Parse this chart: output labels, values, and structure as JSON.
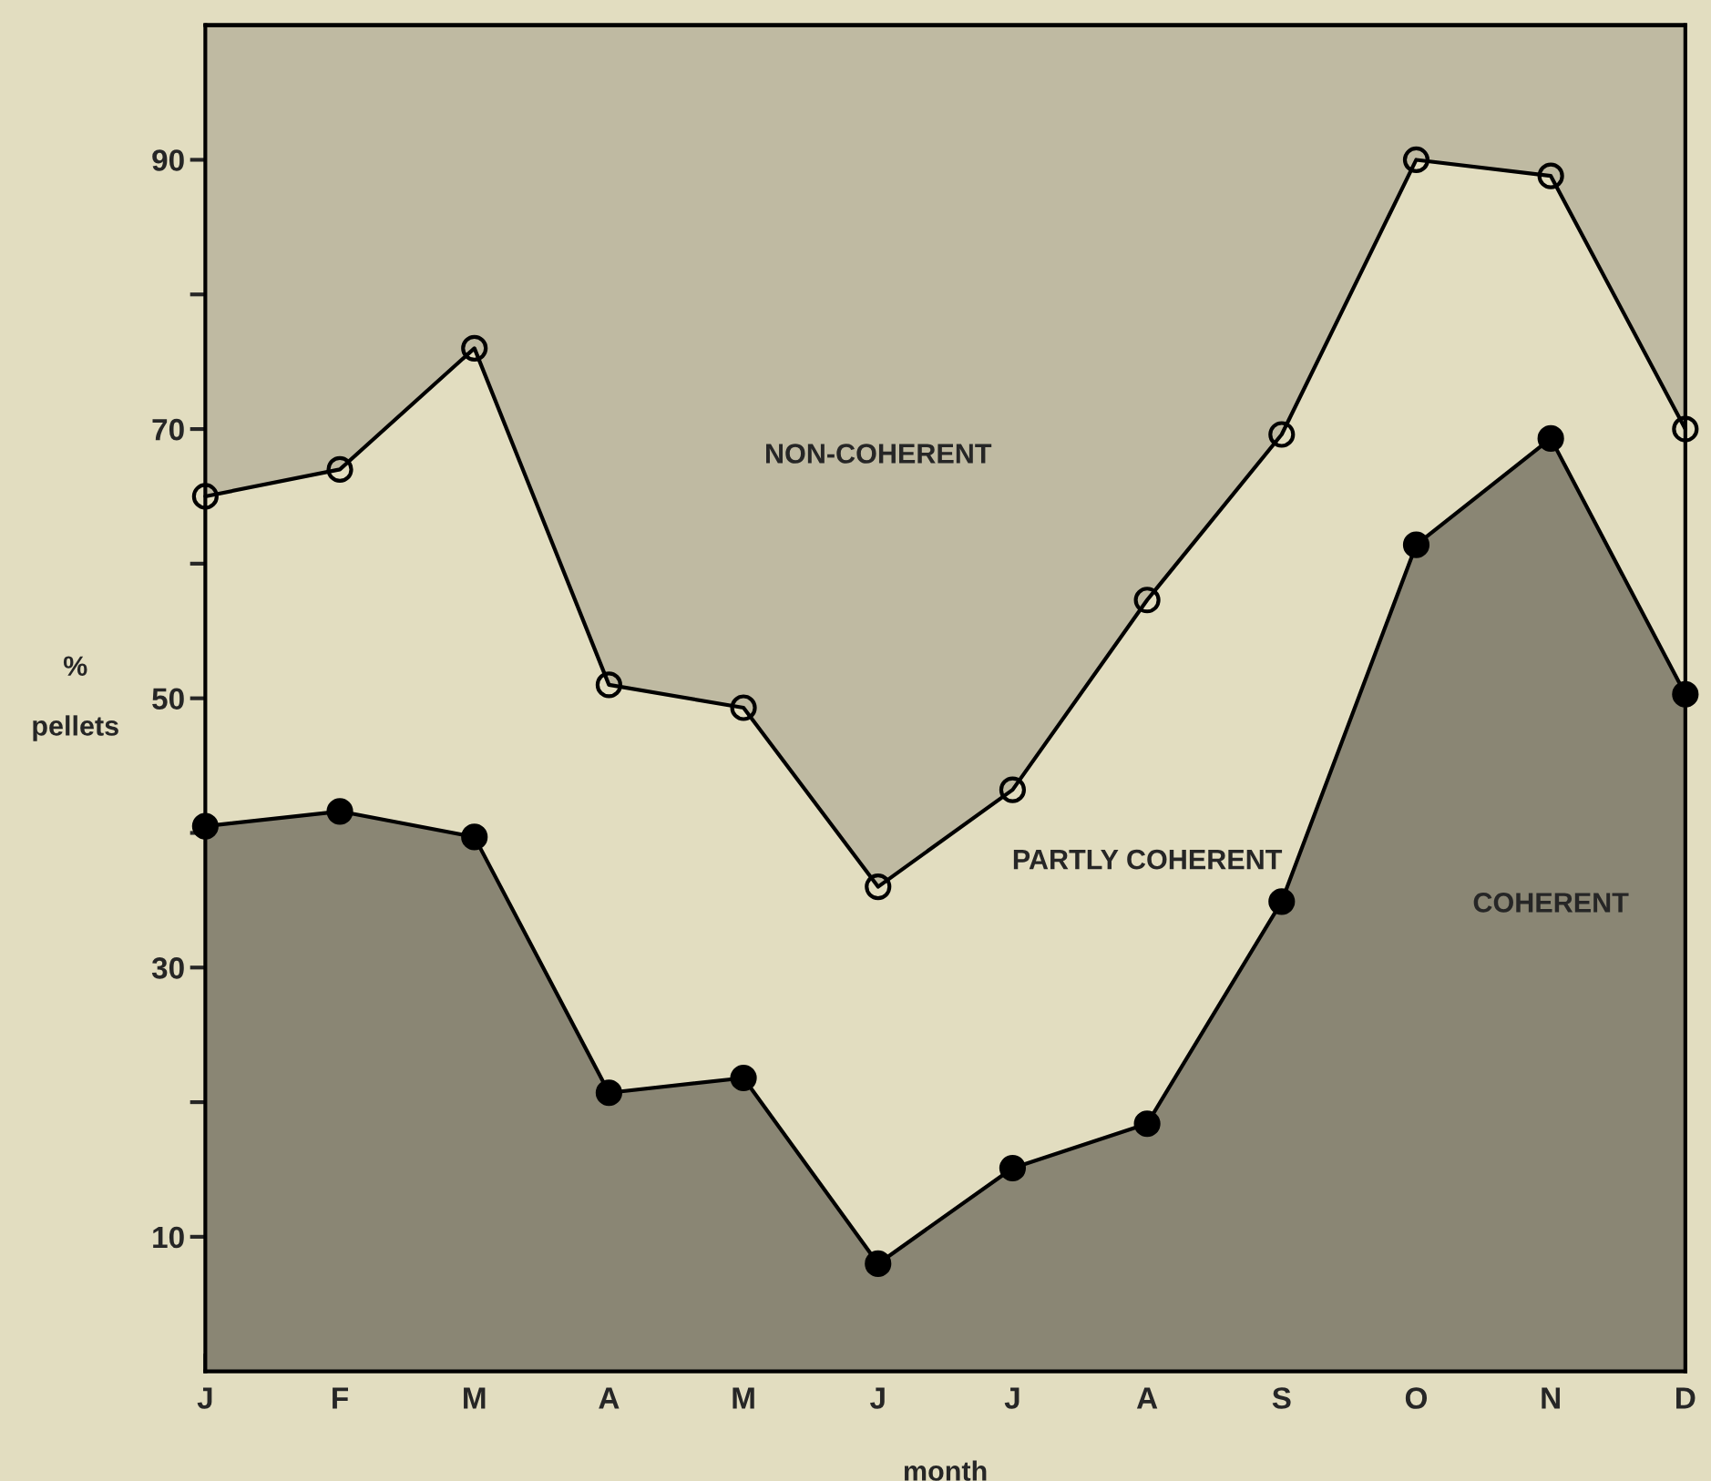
{
  "chart_data": {
    "type": "area",
    "stacked": true,
    "xlabel": "month",
    "ylabel": "%\n\npellets",
    "categories": [
      "J",
      "F",
      "M",
      "A",
      "M",
      "J",
      "J",
      "A",
      "S",
      "O",
      "N",
      "D"
    ],
    "series": [
      {
        "name": "COHERENT",
        "color": "#8a8674",
        "marker": "circle",
        "values": [
          40.5,
          41.6,
          39.7,
          20.7,
          21.8,
          8.0,
          15.1,
          18.4,
          34.9,
          61.4,
          69.3,
          50.3
        ]
      },
      {
        "name": "PARTLY COHERENT",
        "color": "#e2ddc0",
        "marker": "circle",
        "values": [
          24.5,
          25.4,
          36.3,
          30.3,
          27.5,
          28.0,
          28.1,
          38.9,
          34.7,
          28.6,
          19.5,
          19.7
        ]
      },
      {
        "name": "NON-COHERENT",
        "color": "#bfbaa2",
        "marker": "none",
        "values": [
          35.0,
          33.0,
          24.0,
          49.0,
          50.7,
          64.0,
          56.8,
          42.7,
          30.4,
          10.0,
          11.2,
          30.0
        ]
      }
    ],
    "ylim": [
      0,
      100
    ],
    "yticks": [
      10,
      {
        "value": 20,
        "label": null
      },
      30,
      {
        "value": 40,
        "label": null
      },
      50,
      {
        "value": 60,
        "label": null
      },
      70,
      {
        "value": 80,
        "label": null
      },
      90
    ]
  }
}
